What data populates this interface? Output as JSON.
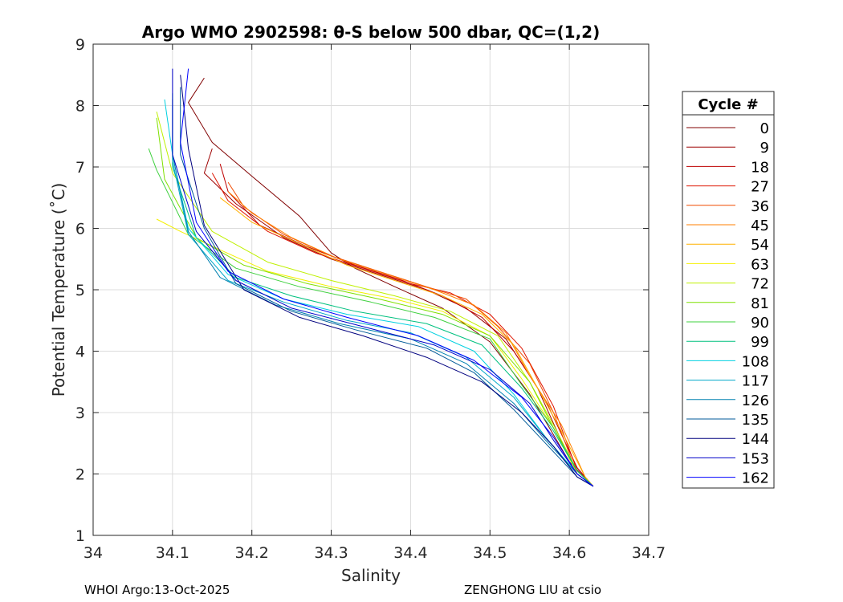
{
  "chart_data": {
    "type": "line",
    "title": "Argo WMO 2902598: θ-S below 500 dbar,  QC=(1,2)",
    "xlabel": "Salinity",
    "ylabel": "Potential Temperature (˚C)",
    "xlim": [
      34.0,
      34.7
    ],
    "ylim": [
      1,
      9
    ],
    "xticks": [
      "34",
      "34.1",
      "34.2",
      "34.3",
      "34.4",
      "34.5",
      "34.6",
      "34.7"
    ],
    "yticks": [
      "1",
      "2",
      "3",
      "4",
      "5",
      "6",
      "7",
      "8",
      "9"
    ],
    "grid": true,
    "legend": {
      "title": "Cycle #",
      "position": "right"
    },
    "series": [
      {
        "name": "0",
        "color": "#800000",
        "x": [
          34.14,
          34.12,
          34.15,
          34.2,
          34.26,
          34.3,
          34.33,
          34.38,
          34.44,
          34.5,
          34.55,
          34.6,
          34.63
        ],
        "y": [
          8.45,
          8.05,
          7.4,
          6.85,
          6.2,
          5.6,
          5.35,
          5.05,
          4.7,
          4.15,
          3.3,
          2.2,
          1.8
        ]
      },
      {
        "name": "9",
        "color": "#9e0000",
        "x": [
          34.15,
          34.14,
          34.18,
          34.24,
          34.3,
          34.36,
          34.42,
          34.47,
          34.52,
          34.56,
          34.6,
          34.63
        ],
        "y": [
          7.3,
          6.9,
          6.4,
          5.85,
          5.5,
          5.25,
          5.0,
          4.7,
          4.2,
          3.4,
          2.25,
          1.8
        ]
      },
      {
        "name": "18",
        "color": "#be0000",
        "x": [
          34.16,
          34.17,
          34.21,
          34.27,
          34.33,
          34.39,
          34.44,
          34.49,
          34.53,
          34.57,
          34.61,
          34.63
        ],
        "y": [
          7.05,
          6.6,
          6.05,
          5.7,
          5.4,
          5.15,
          4.9,
          4.55,
          4.0,
          3.2,
          2.1,
          1.8
        ]
      },
      {
        "name": "27",
        "color": "#de1400",
        "x": [
          34.15,
          34.17,
          34.22,
          34.28,
          34.34,
          34.4,
          34.45,
          34.5,
          34.54,
          34.58,
          34.61,
          34.63
        ],
        "y": [
          6.9,
          6.45,
          5.95,
          5.6,
          5.35,
          5.1,
          4.95,
          4.6,
          4.05,
          3.1,
          2.05,
          1.8
        ]
      },
      {
        "name": "36",
        "color": "#f04a00",
        "x": [
          34.17,
          34.19,
          34.24,
          34.3,
          34.36,
          34.42,
          34.47,
          34.51,
          34.55,
          34.58,
          34.61,
          34.63
        ],
        "y": [
          6.75,
          6.35,
          5.9,
          5.55,
          5.3,
          5.05,
          4.85,
          4.4,
          3.8,
          3.0,
          2.0,
          1.8
        ]
      },
      {
        "name": "45",
        "color": "#ff7f00",
        "x": [
          34.17,
          34.2,
          34.25,
          34.31,
          34.37,
          34.43,
          34.48,
          34.52,
          34.55,
          34.59,
          34.62,
          34.63
        ],
        "y": [
          6.6,
          6.25,
          5.85,
          5.5,
          5.25,
          5.0,
          4.75,
          4.3,
          3.6,
          2.8,
          1.95,
          1.8
        ]
      },
      {
        "name": "54",
        "color": "#ffb000",
        "x": [
          34.16,
          34.2,
          34.26,
          34.32,
          34.38,
          34.44,
          34.49,
          34.53,
          34.56,
          34.59,
          34.62,
          34.63
        ],
        "y": [
          6.5,
          6.1,
          5.75,
          5.4,
          5.15,
          4.9,
          4.6,
          4.1,
          3.4,
          2.7,
          1.95,
          1.8
        ]
      },
      {
        "name": "63",
        "color": "#f4f000",
        "x": [
          34.08,
          34.11,
          34.16,
          34.22,
          34.3,
          34.38,
          34.44,
          34.5,
          34.54,
          34.58,
          34.61,
          34.63
        ],
        "y": [
          6.15,
          5.95,
          5.65,
          5.3,
          5.05,
          4.85,
          4.65,
          4.25,
          3.55,
          2.75,
          2.0,
          1.8
        ]
      },
      {
        "name": "72",
        "color": "#bff000",
        "x": [
          34.08,
          34.1,
          34.15,
          34.22,
          34.3,
          34.38,
          34.45,
          34.51,
          34.55,
          34.58,
          34.61,
          34.63
        ],
        "y": [
          7.9,
          6.9,
          5.95,
          5.45,
          5.15,
          4.9,
          4.65,
          4.25,
          3.5,
          2.8,
          2.05,
          1.8
        ]
      },
      {
        "name": "81",
        "color": "#7fe000",
        "x": [
          34.08,
          34.09,
          34.13,
          34.19,
          34.27,
          34.36,
          34.44,
          34.5,
          34.55,
          34.58,
          34.61,
          34.63
        ],
        "y": [
          7.8,
          6.8,
          5.85,
          5.4,
          5.1,
          4.85,
          4.6,
          4.25,
          3.5,
          2.75,
          2.05,
          1.8
        ]
      },
      {
        "name": "90",
        "color": "#3fd03f",
        "x": [
          34.07,
          34.08,
          34.12,
          34.18,
          34.26,
          34.35,
          34.43,
          34.5,
          34.54,
          34.58,
          34.61,
          34.63
        ],
        "y": [
          7.3,
          6.95,
          5.9,
          5.35,
          5.05,
          4.8,
          4.55,
          4.2,
          3.45,
          2.75,
          2.05,
          1.8
        ]
      },
      {
        "name": "99",
        "color": "#00c07f",
        "x": [
          34.1,
          34.1,
          34.13,
          34.18,
          34.25,
          34.33,
          34.42,
          34.49,
          34.54,
          34.58,
          34.61,
          34.63
        ],
        "y": [
          8.2,
          7.0,
          5.85,
          5.2,
          4.9,
          4.65,
          4.45,
          4.1,
          3.4,
          2.7,
          2.05,
          1.8
        ]
      },
      {
        "name": "108",
        "color": "#00d0e0",
        "x": [
          34.09,
          34.1,
          34.12,
          34.17,
          34.24,
          34.32,
          34.41,
          34.48,
          34.53,
          34.57,
          34.61,
          34.63
        ],
        "y": [
          8.1,
          7.2,
          6.0,
          5.25,
          4.85,
          4.6,
          4.4,
          4.0,
          3.3,
          2.6,
          2.0,
          1.8
        ]
      },
      {
        "name": "117",
        "color": "#00a8c8",
        "x": [
          34.1,
          34.1,
          34.12,
          34.17,
          34.24,
          34.32,
          34.4,
          34.47,
          34.53,
          34.57,
          34.61,
          34.63
        ],
        "y": [
          8.0,
          7.1,
          5.9,
          5.15,
          4.8,
          4.5,
          4.3,
          3.9,
          3.25,
          2.6,
          2.0,
          1.8
        ]
      },
      {
        "name": "126",
        "color": "#0080b0",
        "x": [
          34.1,
          34.1,
          34.12,
          34.16,
          34.23,
          34.31,
          34.4,
          34.47,
          34.53,
          34.57,
          34.61,
          34.63
        ],
        "y": [
          8.1,
          7.2,
          5.95,
          5.2,
          4.75,
          4.45,
          4.2,
          3.8,
          3.15,
          2.55,
          2.0,
          1.8
        ]
      },
      {
        "name": "135",
        "color": "#005a98",
        "x": [
          34.11,
          34.11,
          34.14,
          34.18,
          34.25,
          34.33,
          34.42,
          34.48,
          34.53,
          34.57,
          34.61,
          34.63
        ],
        "y": [
          8.3,
          7.2,
          6.0,
          5.1,
          4.65,
          4.35,
          4.05,
          3.65,
          3.05,
          2.5,
          1.95,
          1.8
        ]
      },
      {
        "name": "144",
        "color": "#00007f",
        "x": [
          34.11,
          34.12,
          34.14,
          34.19,
          34.26,
          34.34,
          34.42,
          34.49,
          34.54,
          34.58,
          34.61,
          34.63
        ],
        "y": [
          8.5,
          7.3,
          6.05,
          5.0,
          4.55,
          4.25,
          3.9,
          3.5,
          3.0,
          2.45,
          1.95,
          1.8
        ]
      },
      {
        "name": "153",
        "color": "#0000c8",
        "x": [
          34.1,
          34.1,
          34.13,
          34.18,
          34.25,
          34.34,
          34.43,
          34.5,
          34.55,
          34.58,
          34.61,
          34.63
        ],
        "y": [
          8.6,
          7.2,
          5.95,
          5.15,
          4.7,
          4.4,
          4.1,
          3.7,
          3.15,
          2.55,
          2.0,
          1.8
        ]
      },
      {
        "name": "162",
        "color": "#0000ff",
        "x": [
          34.12,
          34.11,
          34.13,
          34.17,
          34.24,
          34.32,
          34.41,
          34.48,
          34.54,
          34.58,
          34.61,
          34.63
        ],
        "y": [
          8.6,
          7.4,
          6.1,
          5.3,
          4.85,
          4.55,
          4.25,
          3.85,
          3.25,
          2.6,
          2.0,
          1.8
        ]
      }
    ]
  },
  "footer": {
    "left": "WHOI Argo:13-Oct-2025",
    "right": "ZENGHONG LIU at csio"
  }
}
